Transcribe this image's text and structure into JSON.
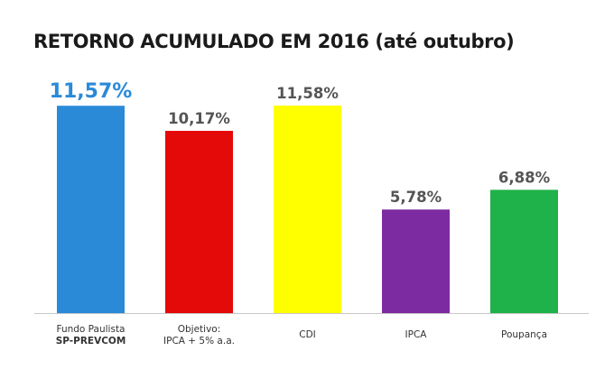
{
  "chart_data": {
    "type": "bar",
    "title": "RETORNO ACUMULADO EM 2016 (até outubro)",
    "categories": [
      [
        "Fundo Paulista",
        "SP-PREVCOM"
      ],
      [
        "Objetivo:",
        "IPCA + 5% a.a."
      ],
      [
        "CDI"
      ],
      [
        "IPCA"
      ],
      [
        "Poupança"
      ]
    ],
    "values": [
      11.57,
      10.17,
      11.58,
      5.78,
      6.88
    ],
    "value_labels": [
      "11,57%",
      "10,17%",
      "11,58%",
      "5,78%",
      "6,88%"
    ],
    "colors": [
      "#2a8ad8",
      "#e40a0a",
      "#ffff00",
      "#7d2ba0",
      "#1fb24a"
    ],
    "label_colors": [
      "#2a8ad8",
      "#555555",
      "#555555",
      "#555555",
      "#555555"
    ],
    "highlight_index": 0,
    "ylim": [
      0,
      11.58
    ],
    "xlabel": "",
    "ylabel": "",
    "grid": false,
    "legend": false
  }
}
